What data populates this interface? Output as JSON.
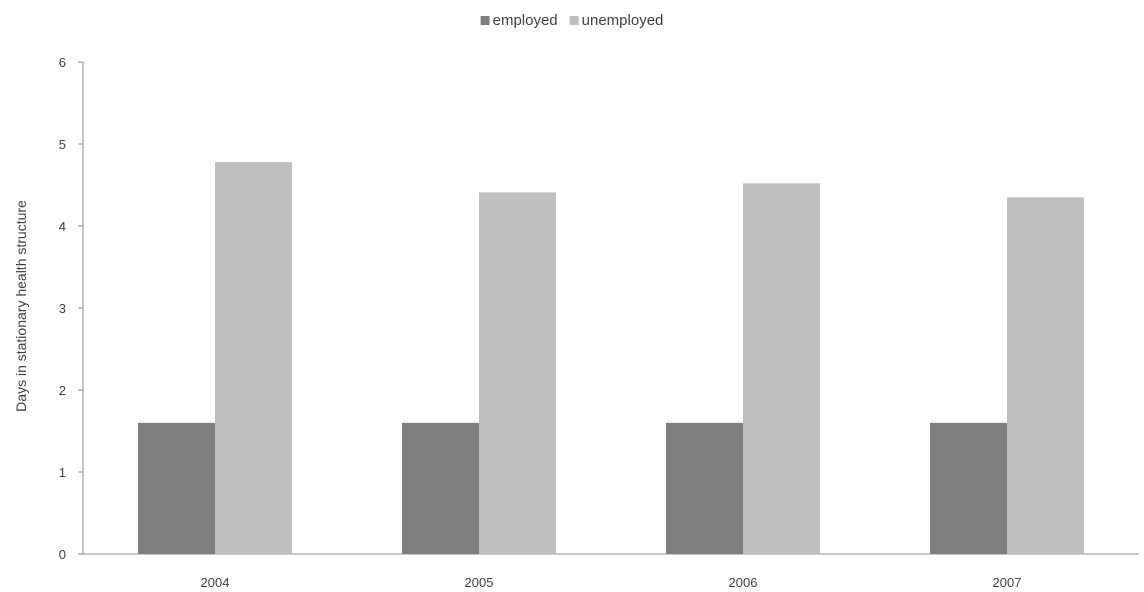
{
  "chart_data": {
    "type": "bar",
    "title": "",
    "xlabel": "",
    "ylabel": "Days in stationary health structure",
    "categories": [
      "2004",
      "2005",
      "2006",
      "2007"
    ],
    "series": [
      {
        "name": "employed",
        "values": [
          1.6,
          1.6,
          1.6,
          1.6
        ],
        "color": "#808080"
      },
      {
        "name": "unemployed",
        "values": [
          4.78,
          4.41,
          4.52,
          4.35
        ],
        "color": "#bfbfbf"
      }
    ],
    "ylim": [
      0,
      6
    ],
    "yticks": [
      "0",
      "1",
      "2",
      "3",
      "4",
      "5",
      "6"
    ],
    "grid": false,
    "legend_position": "top-center"
  }
}
